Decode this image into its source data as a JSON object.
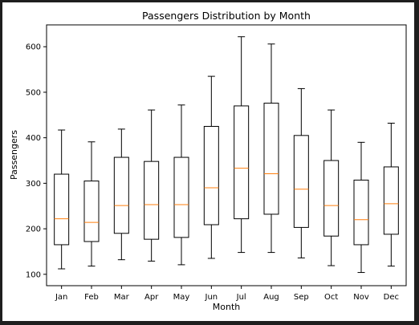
{
  "chart_data": {
    "type": "box",
    "title": "Passengers Distribution by Month",
    "xlabel": "Month",
    "ylabel": "Passengers",
    "ylim": [
      75,
      648
    ],
    "yticks": [
      100,
      200,
      300,
      400,
      500,
      600
    ],
    "grid": false,
    "colors": {
      "box": "#000000",
      "median": "#ff7f0e",
      "background": "#ffffff"
    },
    "categories": [
      "Jan",
      "Feb",
      "Mar",
      "Apr",
      "May",
      "Jun",
      "Jul",
      "Aug",
      "Sep",
      "Oct",
      "Nov",
      "Dec"
    ],
    "boxes": [
      {
        "min": 112,
        "q1": 165,
        "median": 222,
        "q3": 320,
        "max": 417
      },
      {
        "min": 118,
        "q1": 172,
        "median": 214,
        "q3": 305,
        "max": 391
      },
      {
        "min": 132,
        "q1": 190,
        "median": 251,
        "q3": 357,
        "max": 419
      },
      {
        "min": 129,
        "q1": 177,
        "median": 253,
        "q3": 348,
        "max": 461
      },
      {
        "min": 121,
        "q1": 181,
        "median": 253,
        "q3": 357,
        "max": 472
      },
      {
        "min": 135,
        "q1": 209,
        "median": 290,
        "q3": 425,
        "max": 535
      },
      {
        "min": 148,
        "q1": 222,
        "median": 333,
        "q3": 470,
        "max": 622
      },
      {
        "min": 148,
        "q1": 232,
        "median": 321,
        "q3": 476,
        "max": 606
      },
      {
        "min": 136,
        "q1": 203,
        "median": 287,
        "q3": 405,
        "max": 508
      },
      {
        "min": 119,
        "q1": 184,
        "median": 251,
        "q3": 350,
        "max": 461
      },
      {
        "min": 104,
        "q1": 165,
        "median": 220,
        "q3": 307,
        "max": 390
      },
      {
        "min": 118,
        "q1": 188,
        "median": 255,
        "q3": 336,
        "max": 432
      }
    ]
  }
}
